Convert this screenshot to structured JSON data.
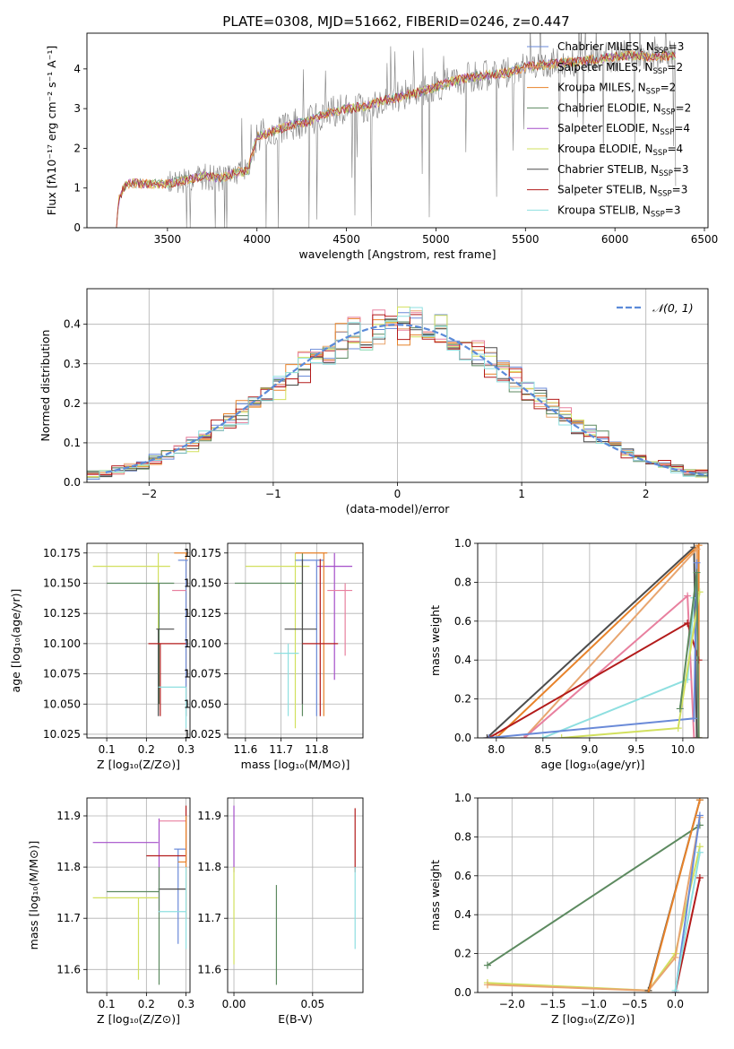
{
  "title": "PLATE=0308, MJD=51662, FIBERID=0246, z=0.447",
  "colors": {
    "chabrier_miles": "#6a8ad8",
    "salpeter_miles": "#e8a56f",
    "kroupa_miles": "#e8832a",
    "chabrier_elodie": "#5d8a60",
    "salpeter_elodie": "#a54fc9",
    "kroupa_elodie": "#d2e05e",
    "chabrier_stelib": "#4d4d4d",
    "salpeter_stelib": "#b31b1b",
    "kroupa_stelib": "#8edfe0",
    "data": "#808080",
    "pink": "#e8809f",
    "normal": "#5b8ad8"
  },
  "chart_data": [
    {
      "id": "spectrum",
      "type": "line",
      "xlabel": "wavelength [Angstrom, rest frame]",
      "ylabel": "Flux [fλ10⁻¹⁷ erg cm⁻² s⁻¹ A⁻¹]",
      "xlim": [
        3050,
        6520
      ],
      "ylim": [
        0,
        4.9
      ],
      "xticks": [
        3500,
        4000,
        4500,
        5000,
        5500,
        6000,
        6500
      ],
      "yticks": [
        0,
        1,
        2,
        3,
        4
      ],
      "legend_position": "top-right",
      "legend": [
        {
          "text": "Chabrier MILES, N",
          "sub": "SSP",
          "val": "=3",
          "color": "chabrier_miles"
        },
        {
          "text": "Salpeter MILES, N",
          "sub": "SSP",
          "val": "=2",
          "color": "salpeter_miles"
        },
        {
          "text": "Kroupa MILES, N",
          "sub": "SSP",
          "val": "=2",
          "color": "kroupa_miles"
        },
        {
          "text": "Chabrier ELODIE, N",
          "sub": "SSP",
          "val": "=2",
          "color": "chabrier_elodie"
        },
        {
          "text": "Salpeter ELODIE, N",
          "sub": "SSP",
          "val": "=4",
          "color": "salpeter_elodie"
        },
        {
          "text": "Kroupa ELODIE, N",
          "sub": "SSP",
          "val": "=4",
          "color": "kroupa_elodie"
        },
        {
          "text": "Chabrier STELIB, N",
          "sub": "SSP",
          "val": "=3",
          "color": "chabrier_stelib"
        },
        {
          "text": "Salpeter STELIB, N",
          "sub": "SSP",
          "val": "=3",
          "color": "salpeter_stelib"
        },
        {
          "text": "Kroupa STELIB, N",
          "sub": "SSP",
          "val": "=3",
          "color": "kroupa_stelib"
        }
      ],
      "continuum": [
        [
          3215,
          0.05
        ],
        [
          3230,
          0.75
        ],
        [
          3260,
          1.05
        ],
        [
          3300,
          1.12
        ],
        [
          3400,
          1.1
        ],
        [
          3500,
          1.1
        ],
        [
          3600,
          1.2
        ],
        [
          3700,
          1.3
        ],
        [
          3800,
          1.25
        ],
        [
          3900,
          1.4
        ],
        [
          3950,
          1.45
        ],
        [
          4000,
          2.3
        ],
        [
          4100,
          2.45
        ],
        [
          4200,
          2.6
        ],
        [
          4300,
          2.7
        ],
        [
          4400,
          2.9
        ],
        [
          4500,
          3.0
        ],
        [
          4600,
          3.05
        ],
        [
          4700,
          3.2
        ],
        [
          4800,
          3.3
        ],
        [
          4900,
          3.4
        ],
        [
          5000,
          3.55
        ],
        [
          5100,
          3.7
        ],
        [
          5200,
          3.8
        ],
        [
          5300,
          3.85
        ],
        [
          5400,
          3.9
        ],
        [
          5500,
          4.05
        ],
        [
          5600,
          4.1
        ],
        [
          5700,
          4.15
        ],
        [
          5800,
          4.2
        ],
        [
          5900,
          4.25
        ],
        [
          6000,
          4.3
        ],
        [
          6100,
          4.35
        ],
        [
          6200,
          4.3
        ],
        [
          6350,
          4.35
        ]
      ]
    },
    {
      "id": "residuals",
      "type": "histogram",
      "xlabel": "(data-model)/error",
      "ylabel": "Normed distribution",
      "xlim": [
        -2.5,
        2.5
      ],
      "ylim": [
        0,
        0.49
      ],
      "xticks": [
        -2,
        -1,
        0,
        1,
        2
      ],
      "yticks": [
        0.0,
        0.1,
        0.2,
        0.3,
        0.4
      ],
      "legend_position": "top-right",
      "legend": [
        {
          "text": "𝒩(0, 1)",
          "color": "normal",
          "style": "dashed"
        }
      ],
      "bin_width": 0.1
    },
    {
      "id": "age_vs_Z",
      "type": "errorbar",
      "xlabel": "Z [log₁₀(Z/Z⊙)]",
      "ylabel": "age  [log₁₀(age/yr)]",
      "xlim": [
        0.05,
        0.31
      ],
      "ylim": [
        10.022,
        10.183
      ],
      "xticks": [
        0.1,
        0.2,
        0.3
      ],
      "yticks": [
        10.025,
        10.05,
        10.075,
        10.1,
        10.125,
        10.15,
        10.175
      ],
      "points": [
        {
          "color": "salpeter_elodie",
          "x": 0.298,
          "y": 10.09,
          "xerr": 0,
          "yerr": 0.06
        },
        {
          "color": "kroupa_elodie",
          "x": 0.23,
          "y": 10.164,
          "xlo": 0.065,
          "xhi": 0.26,
          "ylo": 10.045,
          "yhi": 10.175
        },
        {
          "color": "chabrier_elodie",
          "x": 0.232,
          "y": 10.15,
          "xlo": 0.1,
          "xhi": 0.27,
          "ylo": 10.05,
          "yhi": 10.15
        },
        {
          "color": "kroupa_miles",
          "x": 0.3,
          "y": 10.175,
          "xlo": 0.27,
          "xhi": 0.305,
          "ylo": 10.04,
          "yhi": 10.175
        },
        {
          "color": "chabrier_miles",
          "x": 0.3,
          "y": 10.169,
          "xlo": 0.28,
          "xhi": 0.305,
          "ylo": 10.04,
          "yhi": 10.169
        },
        {
          "color": "pink",
          "x": 0.285,
          "y": 10.144,
          "xlo": 0.265,
          "xhi": 0.3,
          "ylo": 10.144,
          "yhi": 10.144
        },
        {
          "color": "chabrier_stelib",
          "x": 0.23,
          "y": 10.112,
          "xlo": 0.225,
          "xhi": 0.27,
          "ylo": 10.04,
          "yhi": 10.112
        },
        {
          "color": "salpeter_stelib",
          "x": 0.235,
          "y": 10.1,
          "xlo": 0.205,
          "xhi": 0.3,
          "ylo": 10.04,
          "yhi": 10.1
        },
        {
          "color": "kroupa_stelib",
          "x": 0.3,
          "y": 10.064,
          "xlo": 0.23,
          "xhi": 0.3,
          "ylo": 10.03,
          "yhi": 10.064
        }
      ]
    },
    {
      "id": "age_vs_mass",
      "type": "errorbar",
      "xlabel": "mass [log₁₀(M/M⊙)]",
      "ylabel": "",
      "xlim": [
        11.55,
        11.93
      ],
      "ylim": [
        10.022,
        10.183
      ],
      "xticks": [
        11.6,
        11.7,
        11.8
      ],
      "yticks": [
        10.025,
        10.05,
        10.075,
        10.1,
        10.125,
        10.15,
        10.175
      ],
      "points": [
        {
          "color": "chabrier_elodie",
          "x": 11.76,
          "y": 10.15,
          "xlo": 11.57,
          "xhi": 11.76,
          "ylo": 10.04,
          "yhi": 10.175
        },
        {
          "color": "kroupa_elodie",
          "x": 11.74,
          "y": 10.164,
          "xlo": 11.6,
          "xhi": 11.78,
          "ylo": 10.03,
          "yhi": 10.175
        },
        {
          "color": "salpeter_elodie",
          "x": 11.85,
          "y": 10.164,
          "xlo": 11.8,
          "xhi": 11.9,
          "ylo": 10.07,
          "yhi": 10.175
        },
        {
          "color": "kroupa_miles",
          "x": 11.82,
          "y": 10.175,
          "xlo": 11.74,
          "xhi": 11.83,
          "ylo": 10.04,
          "yhi": 10.175
        },
        {
          "color": "chabrier_miles",
          "x": 11.8,
          "y": 10.169,
          "xlo": 11.74,
          "xhi": 11.82,
          "ylo": 10.04,
          "yhi": 10.169
        },
        {
          "color": "pink",
          "x": 11.88,
          "y": 10.144,
          "xlo": 11.83,
          "xhi": 11.9,
          "ylo": 10.09,
          "yhi": 10.15
        },
        {
          "color": "chabrier_stelib",
          "x": 11.76,
          "y": 10.112,
          "xlo": 11.71,
          "xhi": 11.8,
          "ylo": 10.05,
          "yhi": 10.17
        },
        {
          "color": "salpeter_stelib",
          "x": 11.81,
          "y": 10.1,
          "xlo": 11.76,
          "xhi": 11.86,
          "ylo": 10.04,
          "yhi": 10.17
        },
        {
          "color": "kroupa_stelib",
          "x": 11.72,
          "y": 10.092,
          "xlo": 11.68,
          "xhi": 11.75,
          "ylo": 10.04,
          "yhi": 10.1
        }
      ]
    },
    {
      "id": "weight_vs_age",
      "type": "line",
      "xlabel": "age  [log₁₀(age/yr)]",
      "ylabel": "mass weight",
      "xlim": [
        7.8,
        10.27
      ],
      "ylim": [
        0,
        1
      ],
      "xticks": [
        8.0,
        8.5,
        9.0,
        9.5,
        10.0
      ],
      "yticks": [
        0.0,
        0.2,
        0.4,
        0.6,
        0.8,
        1.0
      ],
      "series": [
        {
          "color": "chabrier_stelib",
          "x": [
            7.9,
            10.12,
            10.15
          ],
          "y": [
            0.0,
            0.98,
            0.0
          ]
        },
        {
          "color": "kroupa_miles",
          "x": [
            8.0,
            10.17,
            10.17
          ],
          "y": [
            0.0,
            0.99,
            0.0
          ]
        },
        {
          "color": "salpeter_miles",
          "x": [
            8.3,
            10.15,
            10.17
          ],
          "y": [
            0.0,
            0.97,
            0.0
          ]
        },
        {
          "color": "pink",
          "x": [
            8.3,
            10.05,
            10.12
          ],
          "y": [
            0.0,
            0.73,
            0.0
          ]
        },
        {
          "color": "salpeter_stelib",
          "x": [
            7.92,
            10.05,
            10.17
          ],
          "y": [
            0.0,
            0.59,
            0.4
          ]
        },
        {
          "color": "kroupa_stelib",
          "x": [
            8.5,
            10.05,
            10.12
          ],
          "y": [
            0.0,
            0.3,
            0.72
          ]
        },
        {
          "color": "chabrier_miles",
          "x": [
            7.92,
            10.12,
            10.15
          ],
          "y": [
            0.0,
            0.1,
            0.9
          ]
        },
        {
          "color": "kroupa_elodie",
          "x": [
            8.7,
            9.95,
            10.18
          ],
          "y": [
            0.0,
            0.05,
            0.75
          ]
        },
        {
          "color": "chabrier_elodie",
          "x": [
            9.97,
            10.15,
            10.17
          ],
          "y": [
            0.15,
            0.85,
            0.0
          ]
        }
      ]
    },
    {
      "id": "mass_vs_Z",
      "type": "errorbar",
      "xlabel": "Z [log₁₀(Z/Z⊙)]",
      "ylabel": "mass [log₁₀(M/M⊙)]",
      "xlim": [
        0.05,
        0.31
      ],
      "ylim": [
        11.555,
        11.935
      ],
      "xticks": [
        0.1,
        0.2,
        0.3
      ],
      "yticks": [
        11.6,
        11.7,
        11.8,
        11.9
      ],
      "points": [
        {
          "color": "salpeter_elodie",
          "x": 0.232,
          "y": 11.848,
          "xlo": 0.065,
          "xhi": 0.23,
          "ylo": 11.71,
          "yhi": 11.895
        },
        {
          "color": "pink",
          "x": 0.27,
          "y": 11.89,
          "xlo": 0.232,
          "xhi": 0.3,
          "ylo": 11.89,
          "yhi": 11.89
        },
        {
          "color": "chabrier_miles",
          "x": 0.28,
          "y": 11.835,
          "xlo": 0.27,
          "xhi": 0.3,
          "ylo": 11.65,
          "yhi": 11.835
        },
        {
          "color": "salpeter_stelib",
          "x": 0.3,
          "y": 11.822,
          "xlo": 0.2,
          "xhi": 0.3,
          "ylo": 11.81,
          "yhi": 11.92
        },
        {
          "color": "kroupa_miles",
          "x": 0.3,
          "y": 11.81,
          "xlo": 0.28,
          "xhi": 0.3,
          "ylo": 11.7,
          "yhi": 11.9
        },
        {
          "color": "chabrier_stelib",
          "x": 0.27,
          "y": 11.757,
          "xlo": 0.23,
          "xhi": 0.3,
          "ylo": 11.757,
          "yhi": 11.757
        },
        {
          "color": "chabrier_elodie",
          "x": 0.232,
          "y": 11.752,
          "xlo": 0.1,
          "xhi": 0.232,
          "ylo": 11.57,
          "yhi": 11.8
        },
        {
          "color": "kroupa_elodie",
          "x": 0.18,
          "y": 11.74,
          "xlo": 0.065,
          "xhi": 0.23,
          "ylo": 11.58,
          "yhi": 11.74
        },
        {
          "color": "kroupa_stelib",
          "x": 0.3,
          "y": 11.713,
          "xlo": 0.23,
          "xhi": 0.3,
          "ylo": 11.64,
          "yhi": 11.8
        }
      ]
    },
    {
      "id": "mass_vs_ebv",
      "type": "errorbar",
      "xlabel": "E(B-V)",
      "ylabel": "",
      "xlim": [
        -0.004,
        0.082
      ],
      "ylim": [
        11.555,
        11.935
      ],
      "xticks": [
        0.0,
        0.05
      ],
      "yticks": [
        11.6,
        11.7,
        11.8,
        11.9
      ],
      "points": [
        {
          "color": "salpeter_elodie",
          "x": 0.0,
          "y": 11.85,
          "ylo": 11.79,
          "yhi": 11.92
        },
        {
          "color": "kroupa_elodie",
          "x": 0.0,
          "y": 11.74,
          "ylo": 11.61,
          "yhi": 11.8
        },
        {
          "color": "chabrier_elodie",
          "x": 0.027,
          "y": 11.66,
          "ylo": 11.57,
          "yhi": 11.765
        },
        {
          "color": "salpeter_stelib",
          "x": 0.077,
          "y": 11.84,
          "ylo": 11.79,
          "yhi": 11.915
        },
        {
          "color": "kroupa_stelib",
          "x": 0.077,
          "y": 11.72,
          "ylo": 11.64,
          "yhi": 11.8
        }
      ]
    },
    {
      "id": "weight_vs_Z",
      "type": "line",
      "xlabel": "Z [log₁₀(Z/Z⊙)]",
      "ylabel": "mass weight",
      "xlim": [
        -2.42,
        0.4
      ],
      "ylim": [
        0,
        1
      ],
      "xticks": [
        -2.0,
        -1.5,
        -1.0,
        -0.5,
        0.0
      ],
      "yticks": [
        0.0,
        0.2,
        0.4,
        0.6,
        0.8,
        1.0
      ],
      "series": [
        {
          "color": "chabrier_elodie",
          "x": [
            -2.3,
            0.3
          ],
          "y": [
            0.14,
            0.86
          ]
        },
        {
          "color": "kroupa_elodie",
          "x": [
            -2.3,
            -0.33,
            0.0,
            0.3
          ],
          "y": [
            0.05,
            0.01,
            0.2,
            0.75
          ]
        },
        {
          "color": "salpeter_miles",
          "x": [
            -2.3,
            -0.33,
            0.0,
            0.3
          ],
          "y": [
            0.04,
            0.01,
            0.18,
            0.9
          ]
        },
        {
          "color": "chabrier_stelib",
          "x": [
            -0.33,
            0.3
          ],
          "y": [
            0.01,
            0.99
          ]
        },
        {
          "color": "kroupa_miles",
          "x": [
            -0.33,
            0.3
          ],
          "y": [
            0.0,
            0.99
          ]
        },
        {
          "color": "salpeter_stelib",
          "x": [
            0.0,
            0.3
          ],
          "y": [
            0.0,
            0.59
          ]
        },
        {
          "color": "chabrier_miles",
          "x": [
            0.0,
            0.3
          ],
          "y": [
            0.0,
            0.91
          ]
        },
        {
          "color": "kroupa_stelib",
          "x": [
            0.0,
            0.3
          ],
          "y": [
            0.01,
            0.72
          ]
        }
      ]
    }
  ]
}
